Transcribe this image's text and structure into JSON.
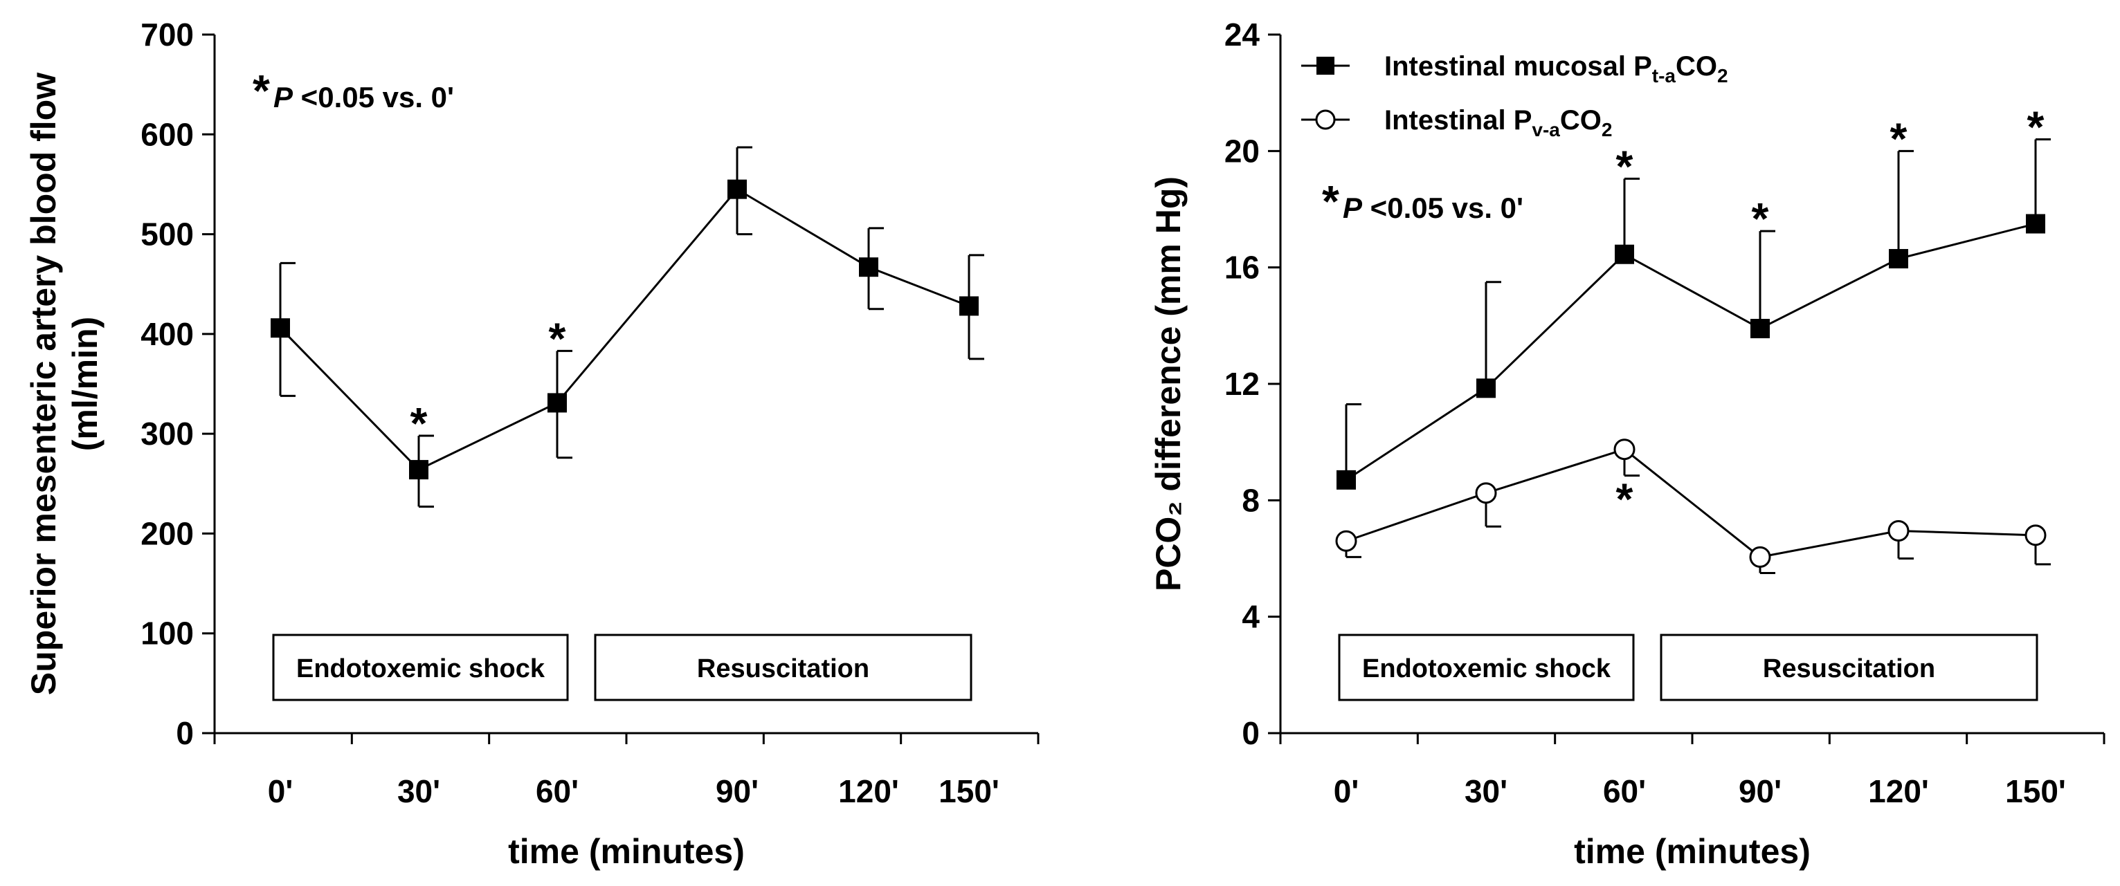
{
  "chart_data": [
    {
      "id": "left",
      "type": "line",
      "xlabel": "time (minutes)",
      "ylabel_line1": "Superior mesenteric artery blood flow",
      "ylabel_line2": "(ml/min)",
      "ylim": [
        0,
        700
      ],
      "yticks": [
        0,
        100,
        200,
        300,
        400,
        500,
        600,
        700
      ],
      "categories": [
        "0'",
        "30'",
        "60'",
        "90'",
        "120'",
        "150'"
      ],
      "annotation": {
        "star": "*",
        "p_symbol": "P",
        "text": " <0.05 vs. 0'"
      },
      "phases": [
        {
          "label": "Endotoxemic shock",
          "start": 0,
          "end": 2
        },
        {
          "label": "Resuscitation",
          "start": 2,
          "end": 5
        }
      ],
      "series": [
        {
          "name": "Superior mesenteric artery blood flow",
          "marker": "filled-square",
          "values": [
            406,
            264,
            331,
            545,
            467,
            428
          ],
          "err_up": [
            65,
            34,
            52,
            42,
            39,
            51
          ],
          "err_down": [
            68,
            37,
            55,
            45,
            42,
            53
          ],
          "significant": [
            false,
            true,
            true,
            false,
            false,
            false
          ],
          "star_position": "above"
        }
      ]
    },
    {
      "id": "right",
      "type": "line",
      "xlabel": "time (minutes)",
      "ylabel": "PCO₂ difference (mm Hg)",
      "ylim": [
        0,
        24
      ],
      "yticks": [
        0,
        4,
        8,
        12,
        16,
        20,
        24
      ],
      "categories": [
        "0'",
        "30'",
        "60'",
        "90'",
        "120'",
        "150'"
      ],
      "annotation": {
        "star": "*",
        "p_symbol": "P",
        "text": " <0.05 vs. 0'"
      },
      "phases": [
        {
          "label": "Endotoxemic shock",
          "start": 0,
          "end": 2
        },
        {
          "label": "Resuscitation",
          "start": 2,
          "end": 5
        }
      ],
      "legend_position": "top-left",
      "series": [
        {
          "name": "Intestinal mucosal Pt-aCO2",
          "legend_main": "Intestinal mucosal P",
          "legend_sub": "t-a",
          "legend_co": "CO",
          "legend_two": "2",
          "marker": "filled-square",
          "values": [
            8.7,
            11.85,
            16.45,
            13.9,
            16.3,
            17.5
          ],
          "err_up": [
            2.6,
            3.65,
            2.6,
            3.35,
            3.7,
            2.9
          ],
          "err_down": [
            0,
            0,
            0,
            0,
            0,
            0
          ],
          "significant": [
            false,
            false,
            true,
            true,
            true,
            true
          ],
          "star_position": "above"
        },
        {
          "name": "Intestinal Pv-aCO2",
          "legend_main": "Intestinal P",
          "legend_sub": "v-a",
          "legend_co": "CO",
          "legend_two": "2",
          "marker": "open-circle",
          "values": [
            6.6,
            8.25,
            9.75,
            6.05,
            6.95,
            6.8
          ],
          "err_up": [
            0,
            0,
            0,
            0,
            0,
            0
          ],
          "err_down": [
            0.55,
            1.15,
            0.9,
            0.55,
            0.95,
            1.0
          ],
          "significant": [
            false,
            false,
            true,
            false,
            false,
            false
          ],
          "star_position": "below"
        }
      ]
    }
  ]
}
